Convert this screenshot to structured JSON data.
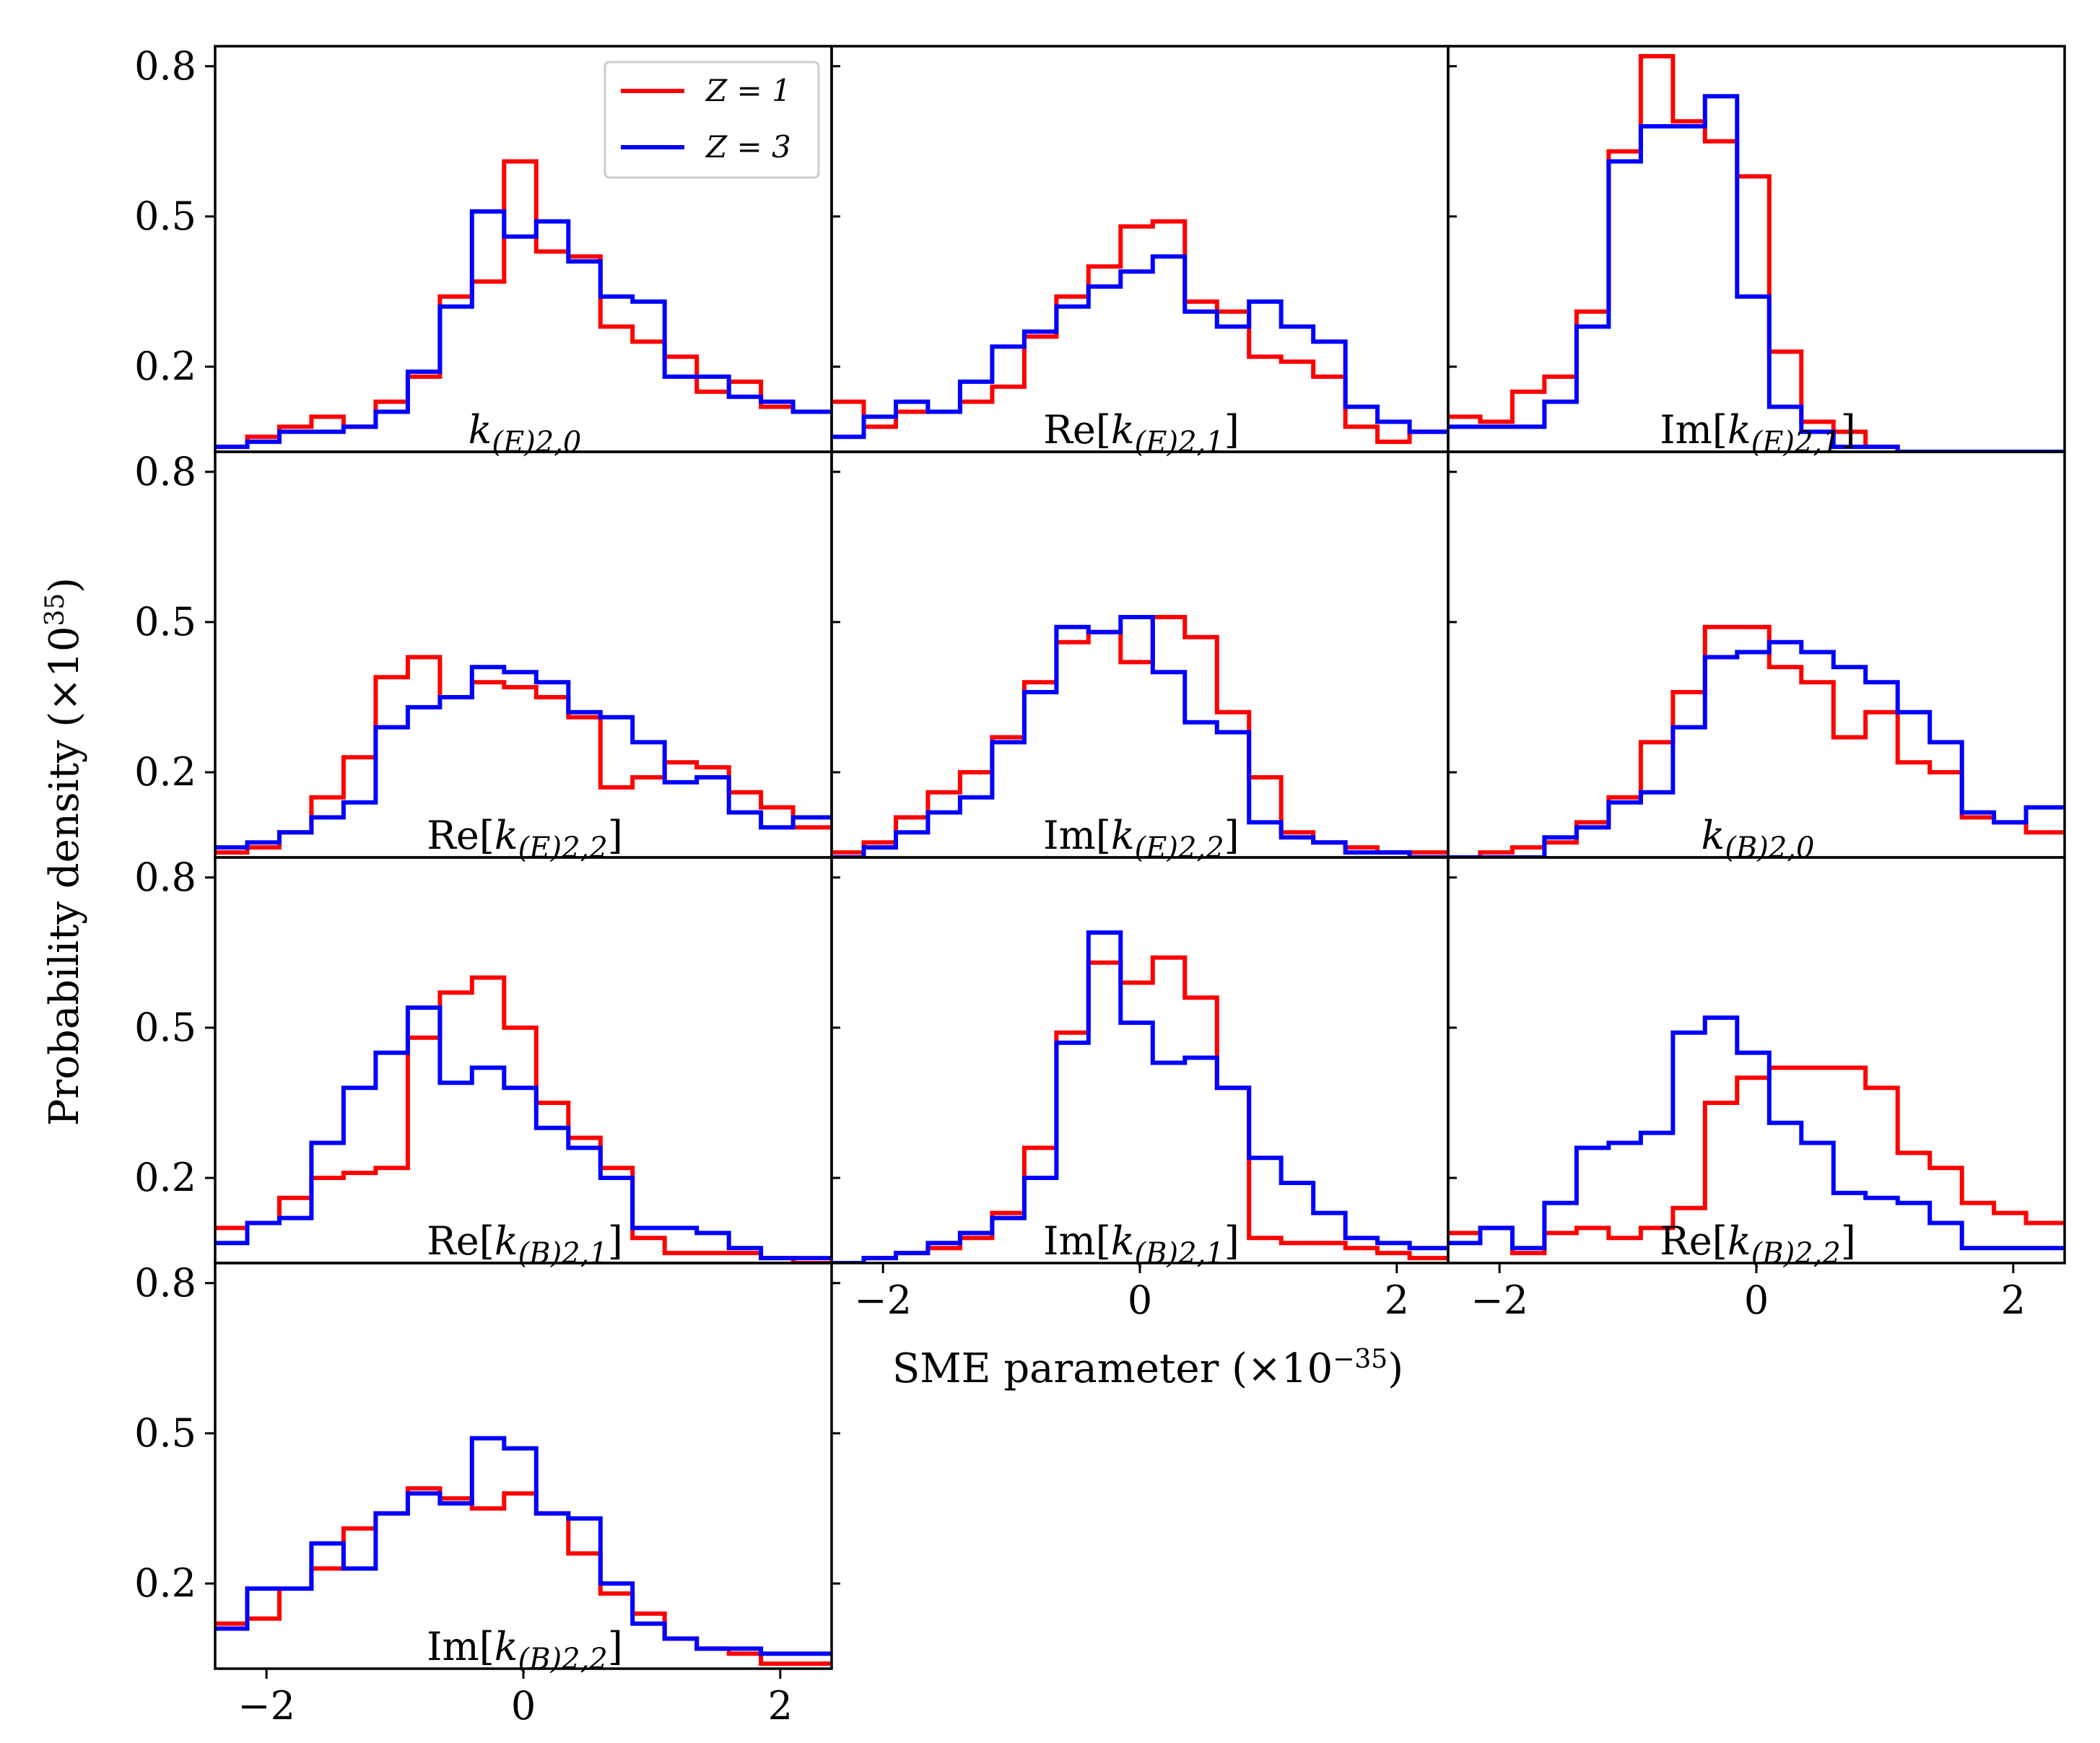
{
  "chart_data": {
    "type": "histogram-grid",
    "xlabel": "SME parameter (×10",
    "xlabel_exp": "−35",
    "xlabel_close": ")",
    "ylabel": "Probability density (×10",
    "ylabel_exp": "35",
    "ylabel_close": ")",
    "xlim": [
      -2.4,
      2.4
    ],
    "ylim": [
      0.03,
      0.84
    ],
    "xticks": [
      -2,
      0,
      2
    ],
    "xtick_labels": [
      "−2",
      "0",
      "2"
    ],
    "yticks": [
      0.2,
      0.5,
      0.8
    ],
    "ytick_labels": [
      "0.2",
      "0.5",
      "0.8"
    ],
    "bin_edges": [
      -2.4,
      -2.15,
      -1.9,
      -1.65,
      -1.4,
      -1.15,
      -0.9,
      -0.65,
      -0.4,
      -0.15,
      0.1,
      0.35,
      0.6,
      0.85,
      1.1,
      1.35,
      1.6,
      1.85,
      2.1,
      2.4
    ],
    "legend": {
      "location": "upper right of first panel",
      "entries": [
        {
          "label": "Z = 1",
          "color": "#ff0000"
        },
        {
          "label": "Z = 3",
          "color": "#0000ff"
        }
      ]
    },
    "panels": [
      {
        "label": "k(E)2,0",
        "series": [
          {
            "name": "Z = 1",
            "color": "#ff0000",
            "values": [
              0.04,
              0.06,
              0.08,
              0.1,
              0.08,
              0.13,
              0.18,
              0.34,
              0.37,
              0.61,
              0.43,
              0.42,
              0.28,
              0.25,
              0.22,
              0.15,
              0.17,
              0.12,
              0.11
            ]
          },
          {
            "name": "Z = 3",
            "color": "#0000ff",
            "values": [
              0.04,
              0.05,
              0.07,
              0.07,
              0.08,
              0.11,
              0.19,
              0.32,
              0.51,
              0.46,
              0.49,
              0.41,
              0.34,
              0.33,
              0.18,
              0.18,
              0.14,
              0.13,
              0.11
            ]
          }
        ]
      },
      {
        "label": "Re[k(E)2,1]",
        "series": [
          {
            "name": "Z = 1",
            "color": "#ff0000",
            "values": [
              0.13,
              0.08,
              0.11,
              0.11,
              0.13,
              0.16,
              0.26,
              0.34,
              0.4,
              0.48,
              0.49,
              0.33,
              0.31,
              0.22,
              0.21,
              0.18,
              0.08,
              0.05,
              0.07
            ]
          },
          {
            "name": "Z = 3",
            "color": "#0000ff",
            "values": [
              0.06,
              0.1,
              0.13,
              0.11,
              0.17,
              0.24,
              0.27,
              0.32,
              0.36,
              0.39,
              0.42,
              0.31,
              0.28,
              0.33,
              0.28,
              0.25,
              0.12,
              0.09,
              0.07
            ]
          }
        ]
      },
      {
        "label": "Im[k(E)2,1]",
        "series": [
          {
            "name": "Z = 1",
            "color": "#ff0000",
            "values": [
              0.1,
              0.09,
              0.15,
              0.18,
              0.31,
              0.63,
              0.82,
              0.69,
              0.65,
              0.58,
              0.23,
              0.09,
              0.07,
              0.04,
              0.03,
              0.03,
              0.03,
              0.03,
              0.03
            ]
          },
          {
            "name": "Z = 3",
            "color": "#0000ff",
            "values": [
              0.08,
              0.08,
              0.08,
              0.13,
              0.28,
              0.61,
              0.68,
              0.68,
              0.74,
              0.34,
              0.12,
              0.07,
              0.04,
              0.04,
              0.03,
              0.03,
              0.03,
              0.03,
              0.03
            ]
          }
        ]
      },
      {
        "label": "Re[k(E)2,2]",
        "series": [
          {
            "name": "Z = 1",
            "color": "#ff0000",
            "values": [
              0.04,
              0.05,
              0.08,
              0.15,
              0.23,
              0.39,
              0.43,
              0.35,
              0.38,
              0.37,
              0.35,
              0.31,
              0.17,
              0.19,
              0.22,
              0.21,
              0.16,
              0.13,
              0.09
            ]
          },
          {
            "name": "Z = 3",
            "color": "#0000ff",
            "values": [
              0.05,
              0.06,
              0.08,
              0.11,
              0.14,
              0.29,
              0.33,
              0.35,
              0.41,
              0.4,
              0.38,
              0.32,
              0.31,
              0.26,
              0.18,
              0.19,
              0.12,
              0.09,
              0.11
            ]
          }
        ]
      },
      {
        "label": "Im[k(E)2,2]",
        "series": [
          {
            "name": "Z = 1",
            "color": "#ff0000",
            "values": [
              0.04,
              0.06,
              0.11,
              0.16,
              0.2,
              0.27,
              0.38,
              0.46,
              0.48,
              0.42,
              0.51,
              0.47,
              0.32,
              0.19,
              0.08,
              0.06,
              0.05,
              0.04,
              0.04
            ]
          },
          {
            "name": "Z = 3",
            "color": "#0000ff",
            "values": [
              0.03,
              0.05,
              0.08,
              0.12,
              0.15,
              0.26,
              0.36,
              0.49,
              0.48,
              0.51,
              0.4,
              0.3,
              0.28,
              0.1,
              0.07,
              0.06,
              0.04,
              0.04,
              0.03
            ]
          }
        ]
      },
      {
        "label": "k(B)2,0",
        "series": [
          {
            "name": "Z = 1",
            "color": "#ff0000",
            "values": [
              0.03,
              0.04,
              0.05,
              0.06,
              0.1,
              0.15,
              0.26,
              0.36,
              0.49,
              0.49,
              0.41,
              0.38,
              0.27,
              0.32,
              0.22,
              0.2,
              0.11,
              0.1,
              0.08
            ]
          },
          {
            "name": "Z = 3",
            "color": "#0000ff",
            "values": [
              0.03,
              0.03,
              0.03,
              0.07,
              0.09,
              0.14,
              0.16,
              0.29,
              0.43,
              0.44,
              0.46,
              0.44,
              0.41,
              0.38,
              0.32,
              0.26,
              0.12,
              0.1,
              0.13
            ]
          }
        ]
      },
      {
        "label": "Re[k(B)2,1]",
        "series": [
          {
            "name": "Z = 1",
            "color": "#ff0000",
            "values": [
              0.1,
              0.11,
              0.16,
              0.2,
              0.21,
              0.22,
              0.48,
              0.57,
              0.6,
              0.5,
              0.35,
              0.28,
              0.22,
              0.08,
              0.05,
              0.05,
              0.05,
              0.04,
              0.03
            ]
          },
          {
            "name": "Z = 3",
            "color": "#0000ff",
            "values": [
              0.07,
              0.11,
              0.12,
              0.27,
              0.38,
              0.45,
              0.54,
              0.39,
              0.42,
              0.38,
              0.3,
              0.26,
              0.2,
              0.1,
              0.1,
              0.09,
              0.06,
              0.04,
              0.04
            ]
          }
        ]
      },
      {
        "label": "Im[k(B)2,1]",
        "series": [
          {
            "name": "Z = 1",
            "color": "#ff0000",
            "values": [
              0.03,
              0.04,
              0.05,
              0.06,
              0.08,
              0.13,
              0.26,
              0.49,
              0.63,
              0.59,
              0.64,
              0.56,
              0.38,
              0.08,
              0.07,
              0.07,
              0.06,
              0.05,
              0.04
            ]
          },
          {
            "name": "Z = 3",
            "color": "#0000ff",
            "values": [
              0.03,
              0.04,
              0.05,
              0.07,
              0.09,
              0.12,
              0.2,
              0.47,
              0.69,
              0.51,
              0.43,
              0.44,
              0.38,
              0.24,
              0.19,
              0.13,
              0.08,
              0.07,
              0.06
            ]
          }
        ]
      },
      {
        "label": "Re[k(B)2,2]",
        "series": [
          {
            "name": "Z = 1",
            "color": "#ff0000",
            "values": [
              0.09,
              0.1,
              0.05,
              0.09,
              0.1,
              0.08,
              0.1,
              0.14,
              0.35,
              0.4,
              0.42,
              0.42,
              0.42,
              0.38,
              0.25,
              0.22,
              0.15,
              0.13,
              0.11
            ]
          },
          {
            "name": "Z = 3",
            "color": "#0000ff",
            "values": [
              0.07,
              0.1,
              0.06,
              0.15,
              0.26,
              0.27,
              0.29,
              0.49,
              0.52,
              0.45,
              0.31,
              0.27,
              0.17,
              0.16,
              0.15,
              0.11,
              0.06,
              0.06,
              0.06
            ]
          }
        ]
      },
      {
        "label": "Im[k(B)2,2]",
        "series": [
          {
            "name": "Z = 1",
            "color": "#ff0000",
            "values": [
              0.12,
              0.13,
              0.19,
              0.23,
              0.31,
              0.34,
              0.39,
              0.37,
              0.35,
              0.38,
              0.34,
              0.26,
              0.18,
              0.14,
              0.09,
              0.07,
              0.06,
              0.04,
              0.04
            ]
          },
          {
            "name": "Z = 3",
            "color": "#0000ff",
            "values": [
              0.11,
              0.19,
              0.19,
              0.28,
              0.23,
              0.34,
              0.38,
              0.36,
              0.49,
              0.47,
              0.34,
              0.33,
              0.2,
              0.12,
              0.09,
              0.07,
              0.07,
              0.06,
              0.06
            ]
          }
        ]
      }
    ]
  }
}
